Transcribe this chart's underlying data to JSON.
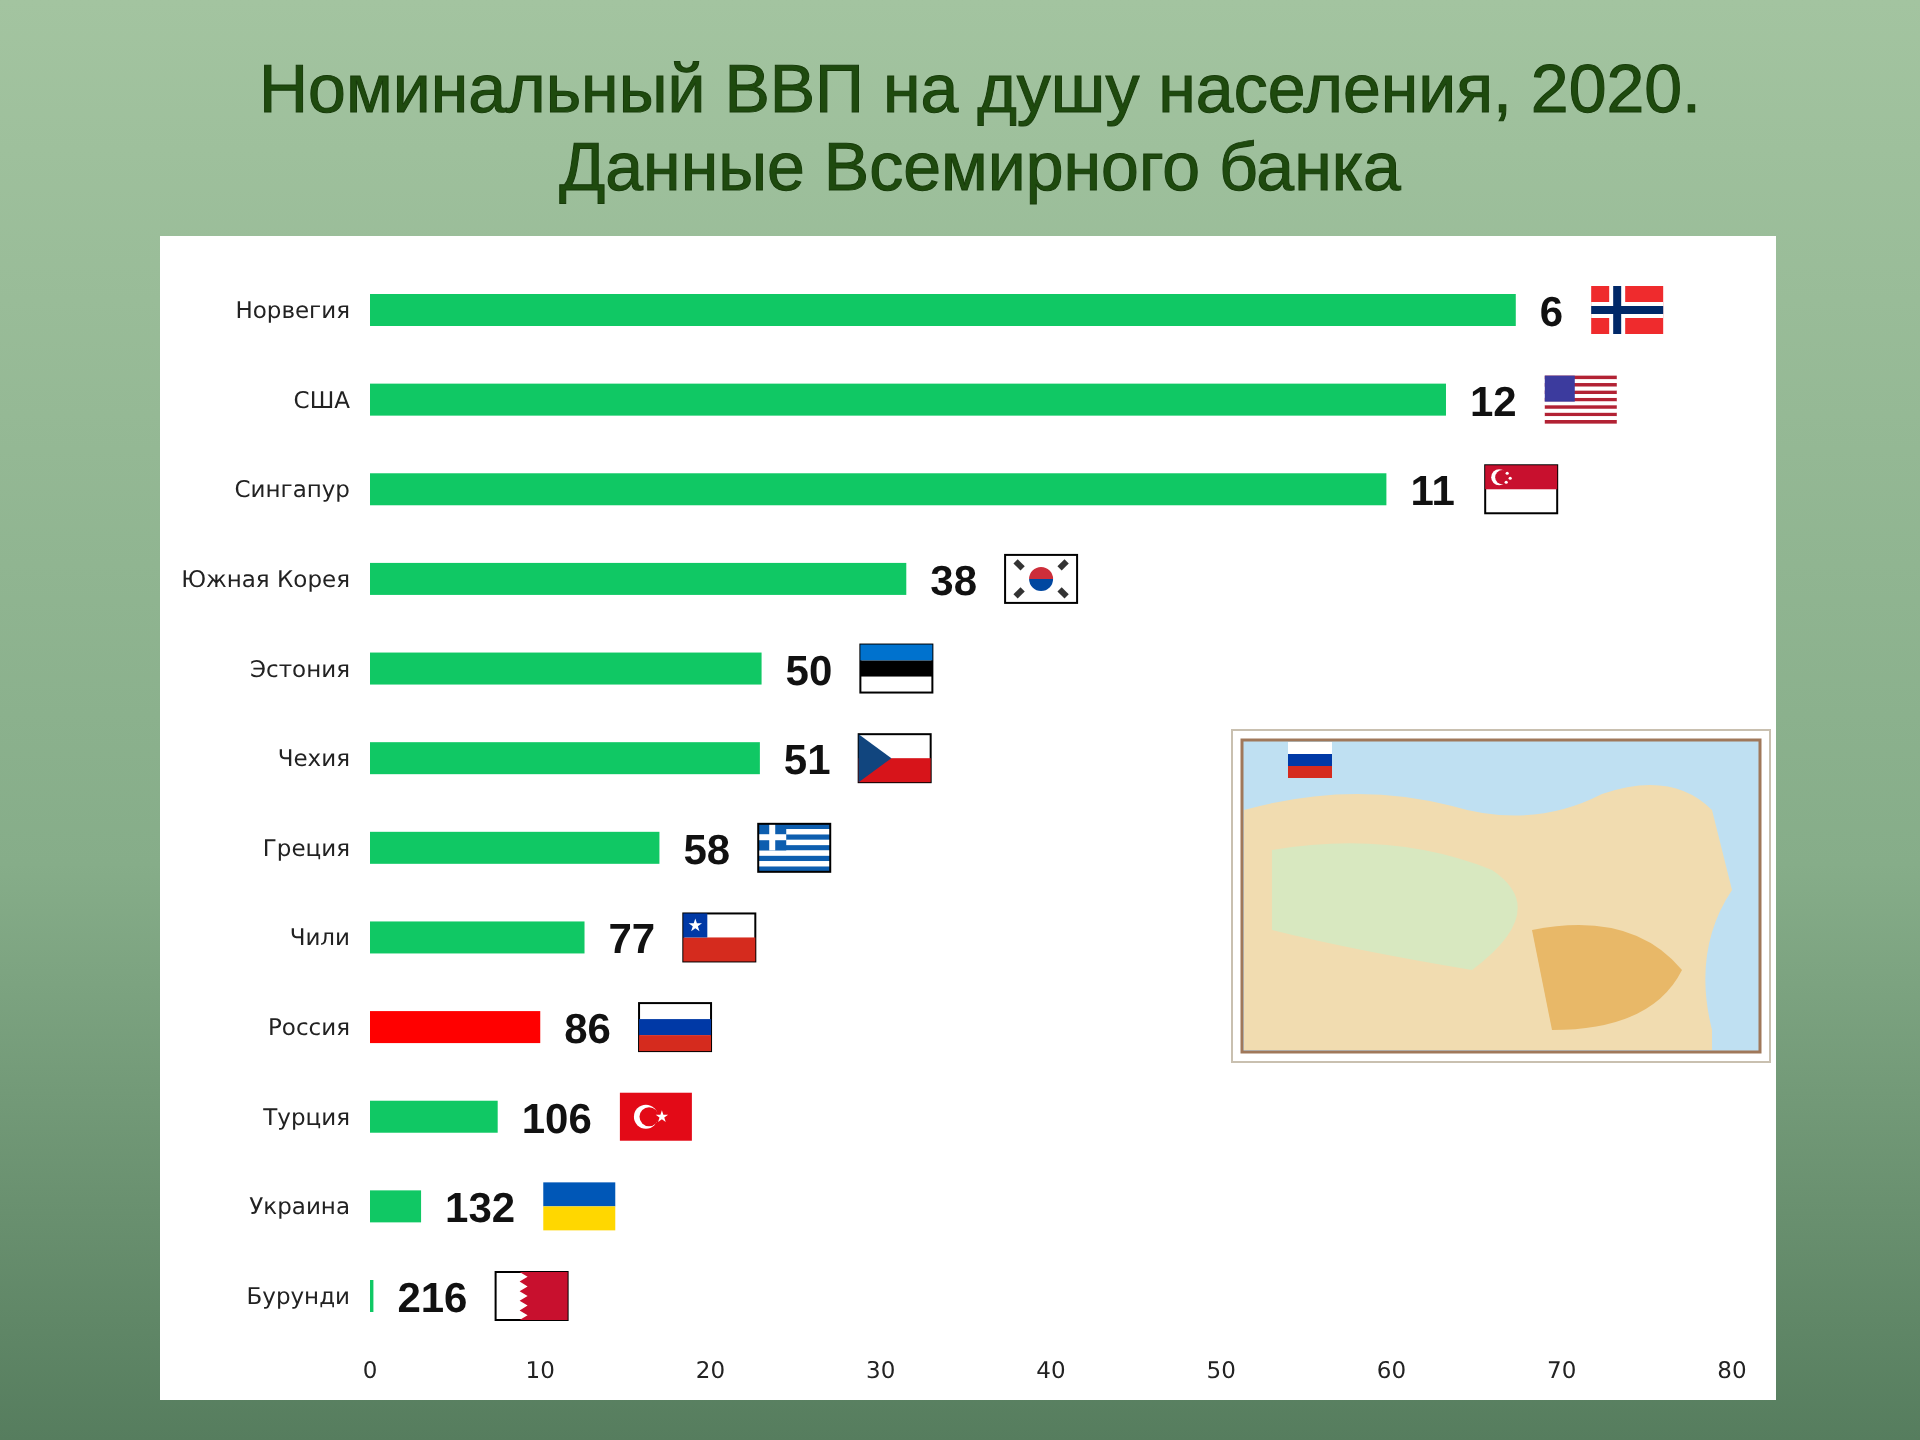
{
  "chart_data": {
    "type": "bar",
    "orientation": "horizontal",
    "title": "Номинальный ВВП на душу населения, 2020.",
    "subtitle": "Данные Всемирного банка",
    "categories": [
      "Норвегия",
      "США",
      "Сингапур",
      "Южная Корея",
      "Эстония",
      "Чехия",
      "Греция",
      "Чили",
      "Россия",
      "Турция",
      "Украина",
      "Бурунди"
    ],
    "values": [
      67.3,
      63.2,
      59.7,
      31.5,
      23.0,
      22.9,
      17.0,
      12.6,
      10.0,
      7.5,
      3.0,
      0.2
    ],
    "colors": [
      "#10c864",
      "#10c864",
      "#10c864",
      "#10c864",
      "#10c864",
      "#10c864",
      "#10c864",
      "#10c864",
      "#ff0000",
      "#10c864",
      "#10c864",
      "#10c864"
    ],
    "annotations": [
      {
        "text": "6",
        "x": 67.3,
        "y": "Норвегия"
      },
      {
        "text": "12",
        "x": 63.2,
        "y": "США"
      },
      {
        "text": "11",
        "x": 59.7,
        "y": "Сингапур"
      },
      {
        "text": "38",
        "x": 31.5,
        "y": "Южная Корея"
      },
      {
        "text": "50",
        "x": 23.0,
        "y": "Эстония"
      },
      {
        "text": "51",
        "x": 22.9,
        "y": "Чехия"
      },
      {
        "text": "58",
        "x": 17.0,
        "y": "Греция"
      },
      {
        "text": "77",
        "x": 12.6,
        "y": "Чили"
      },
      {
        "text": "86",
        "x": 10.0,
        "y": "Россия"
      },
      {
        "text": "106",
        "x": 7.5,
        "y": "Турция"
      },
      {
        "text": "132",
        "x": 3.0,
        "y": "Украина"
      },
      {
        "text": "216",
        "x": 0.2,
        "y": "Бурунди"
      }
    ],
    "xlim": [
      0,
      80
    ],
    "xticks": [
      0,
      10,
      20,
      30,
      40,
      50,
      60,
      70,
      80
    ]
  }
}
